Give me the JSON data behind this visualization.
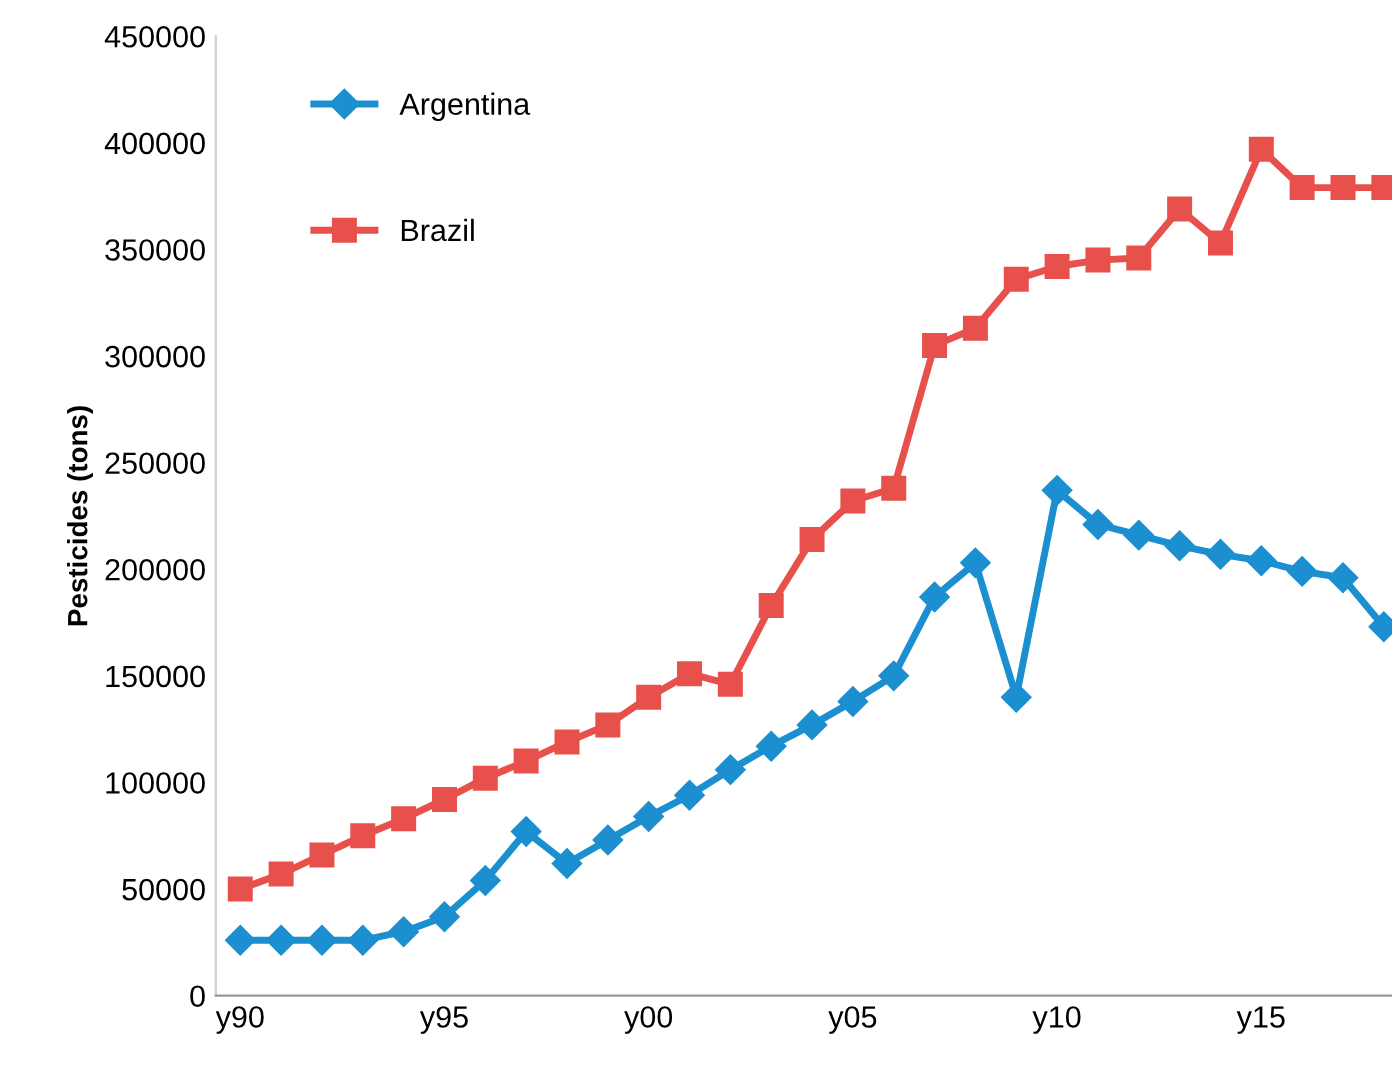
{
  "chart_data": {
    "type": "line",
    "ylabel": "Pesticides (tons)",
    "categories": [
      "y90",
      null,
      null,
      null,
      null,
      "y95",
      null,
      null,
      null,
      null,
      "y00",
      null,
      null,
      null,
      null,
      "y05",
      null,
      null,
      null,
      null,
      "y10",
      null,
      null,
      null,
      null,
      "y15",
      null,
      null,
      null
    ],
    "series": [
      {
        "name": "Argentina",
        "color": "#1b8fd0",
        "marker": "diamond",
        "values": [
          26000,
          26000,
          26000,
          26000,
          30000,
          37000,
          54000,
          77000,
          62000,
          73000,
          84000,
          94000,
          106000,
          117000,
          127000,
          138000,
          150000,
          187000,
          203000,
          140000,
          237000,
          221000,
          216000,
          211000,
          207000,
          204000,
          199000,
          196000,
          173000
        ]
      },
      {
        "name": "Brazil",
        "color": "#e8504c",
        "marker": "square",
        "values": [
          50000,
          57000,
          66000,
          75000,
          83000,
          92000,
          102000,
          110000,
          119000,
          127000,
          140000,
          151000,
          146000,
          183000,
          214000,
          232000,
          238000,
          305000,
          313000,
          336000,
          342000,
          345000,
          346000,
          369000,
          353000,
          397000,
          379000,
          379000,
          379000
        ]
      }
    ],
    "ylim": [
      0,
      450000
    ],
    "yticks": [
      0,
      50000,
      100000,
      150000,
      200000,
      250000,
      300000,
      350000,
      400000,
      450000
    ],
    "grid": false,
    "legend": "top left",
    "line_style": "solid"
  }
}
